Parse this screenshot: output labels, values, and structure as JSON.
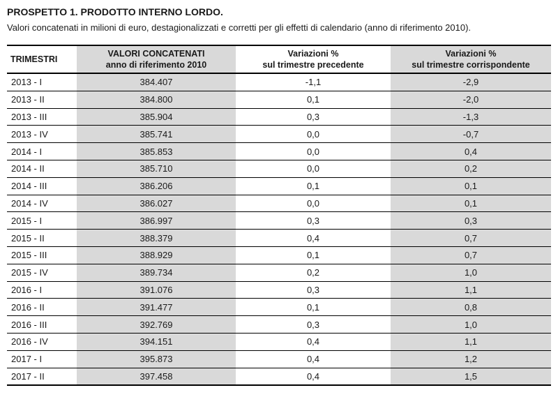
{
  "title": "PROSPETTO 1. PRODOTTO INTERNO LORDO.",
  "subtitle": "Valori concatenati in milioni di euro, destagionalizzati e corretti per gli effetti di calendario (anno di riferimento 2010).",
  "colors": {
    "stripe_gray": "#d9d9d9",
    "border_black": "#000000",
    "text": "#1a1a1a"
  },
  "table": {
    "headers": [
      "TRIMESTRI",
      "VALORI CONCATENATI\nanno di riferimento 2010",
      "Variazioni %\nsul trimestre precedente",
      "Variazioni %\nsul trimestre corrispondente"
    ],
    "rows": [
      [
        "2013 - I",
        "384.407",
        "-1,1",
        "-2,9"
      ],
      [
        "2013 - II",
        "384.800",
        "0,1",
        "-2,0"
      ],
      [
        "2013 - III",
        "385.904",
        "0,3",
        "-1,3"
      ],
      [
        "2013 - IV",
        "385.741",
        "0,0",
        "-0,7"
      ],
      [
        "2014 - I",
        "385.853",
        "0,0",
        "0,4"
      ],
      [
        "2014 - II",
        "385.710",
        "0,0",
        "0,2"
      ],
      [
        "2014 - III",
        "386.206",
        "0,1",
        "0,1"
      ],
      [
        "2014 - IV",
        "386.027",
        "0,0",
        "0,1"
      ],
      [
        "2015 - I",
        "386.997",
        "0,3",
        "0,3"
      ],
      [
        "2015 - II",
        "388.379",
        "0,4",
        "0,7"
      ],
      [
        "2015 - III",
        "388.929",
        "0,1",
        "0,7"
      ],
      [
        "2015 - IV",
        "389.734",
        "0,2",
        "1,0"
      ],
      [
        "2016 - I",
        "391.076",
        "0,3",
        "1,1"
      ],
      [
        "2016 - II",
        "391.477",
        "0,1",
        "0,8"
      ],
      [
        "2016 - III",
        "392.769",
        "0,3",
        "1,0"
      ],
      [
        "2016 - IV",
        "394.151",
        "0,4",
        "1,1"
      ],
      [
        "2017 - I",
        "395.873",
        "0,4",
        "1,2"
      ],
      [
        "2017 - II",
        "397.458",
        "0,4",
        "1,5"
      ]
    ]
  }
}
